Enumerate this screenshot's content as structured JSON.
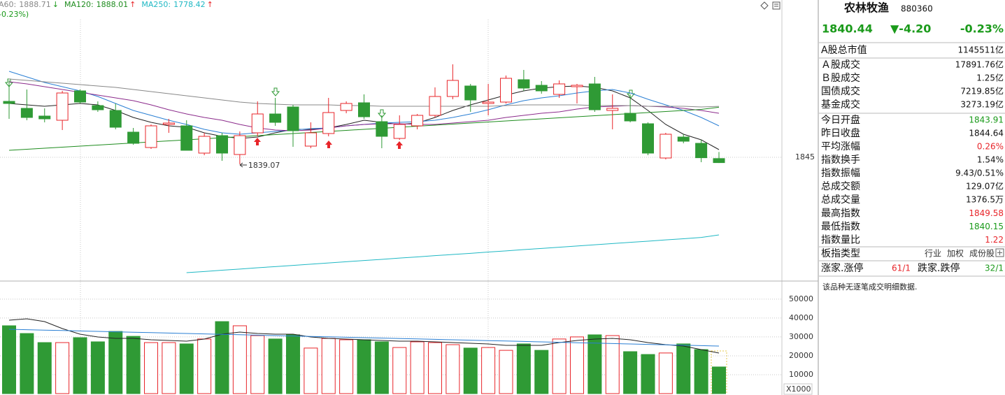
{
  "chart_data": [
    {
      "type": "candlestick",
      "open": [
        1893,
        1887,
        1880.4,
        1876.8,
        1902,
        1889.4,
        1885.2,
        1866.6,
        1853.4,
        1873.2,
        1872,
        1848.6,
        1863.6,
        1847.4,
        1866,
        1882.2,
        1888.2,
        1854.6,
        1865.4,
        1885.2,
        1891.8,
        1875.6,
        1861.2,
        1872,
        1881,
        1897.2,
        1906.2,
        1891.2,
        1892.4,
        1911.6,
        1906.8,
        1899,
        1905.6,
        1908,
        1885.2,
        1882.8,
        1873.8,
        1844.4,
        1862.4,
        1857,
        1843.91
      ],
      "high": [
        1911,
        1903.2,
        1887,
        1902,
        1903.2,
        1893,
        1891.2,
        1870.2,
        1873.2,
        1878,
        1876.8,
        1866,
        1866,
        1867.2,
        1893,
        1896,
        1890,
        1875,
        1896,
        1893,
        1899,
        1881,
        1881,
        1882.2,
        1905,
        1924.8,
        1908,
        1908,
        1915.2,
        1920,
        1910.4,
        1911,
        1908,
        1914,
        1899,
        1899,
        1875,
        1866,
        1864.8,
        1860,
        1849.58
      ],
      "low": [
        1878,
        1876.8,
        1875,
        1868.4,
        1891.2,
        1884,
        1869,
        1855.8,
        1852.2,
        1866,
        1851,
        1846.8,
        1842,
        1839.07,
        1863,
        1872,
        1854,
        1852.8,
        1863,
        1882.8,
        1878,
        1852.8,
        1860,
        1869,
        1879.2,
        1894.8,
        1884,
        1881,
        1891.2,
        1902,
        1899.6,
        1896,
        1891.2,
        1884,
        1869,
        1875,
        1846.8,
        1843.2,
        1857,
        1840.8,
        1840.15
      ],
      "close": [
        1891.2,
        1879.2,
        1878,
        1900.2,
        1892.4,
        1885.8,
        1870.8,
        1857,
        1872,
        1874.4,
        1851,
        1863,
        1848.6,
        1863.6,
        1882.2,
        1875,
        1867.8,
        1866,
        1883.4,
        1891.2,
        1879.8,
        1863,
        1873.2,
        1881,
        1897.2,
        1911,
        1894.2,
        1892.4,
        1912.8,
        1904.4,
        1902,
        1908,
        1906.8,
        1885.8,
        1887,
        1876.2,
        1848.6,
        1864.8,
        1858.8,
        1844.64,
        1840.44
      ],
      "up_color": "#e8252a",
      "down_color": "#2f9a35",
      "ylim": [
        1740,
        1980
      ],
      "yticks": [
        1845
      ],
      "grid": true,
      "low_annotation_index": 13,
      "change_fragment": "-0.23%)",
      "change_fragment_color": "#1a9a1a",
      "series": [
        {
          "color": "#222222",
          "values": [
            1891.2,
            1890,
            1888.8,
            1890,
            1891.2,
            1890,
            1885.2,
            1879.2,
            1875,
            1872,
            1870.8,
            1866,
            1863,
            1861.2,
            1862.4,
            1866,
            1869,
            1869,
            1870.2,
            1873.2,
            1876.8,
            1875,
            1873.2,
            1874.4,
            1879.2,
            1885.2,
            1890,
            1894.2,
            1898.4,
            1902,
            1904.4,
            1905.6,
            1906.2,
            1905,
            1902,
            1896,
            1885.2,
            1873.2,
            1864.8,
            1860,
            1851.6
          ]
        },
        {
          "color": "#2a7fd4",
          "values": [
            1918.8,
            1914,
            1909.2,
            1905.6,
            1902,
            1897.2,
            1891.2,
            1885.2,
            1881,
            1876.8,
            1873.2,
            1869,
            1866,
            1864.8,
            1866,
            1867.2,
            1868.4,
            1869.6,
            1870.2,
            1872,
            1873.2,
            1874.4,
            1875,
            1875.6,
            1876.8,
            1879.2,
            1882.2,
            1885.8,
            1890,
            1893.6,
            1896,
            1897.8,
            1900.2,
            1902,
            1903.2,
            1900.2,
            1894.8,
            1890,
            1885.2,
            1879.2,
            1872
          ]
        },
        {
          "color": "#8b2a8b",
          "values": [
            1909.8,
            1908,
            1905.6,
            1903.2,
            1900.8,
            1898.4,
            1896,
            1893.6,
            1890,
            1885.8,
            1882.2,
            1879.2,
            1876.8,
            1873.2,
            1870.2,
            1868.4,
            1867.8,
            1868.4,
            1870.2,
            1872,
            1873.2,
            1873.8,
            1873.8,
            1873.2,
            1873.2,
            1874.4,
            1875.6,
            1876.8,
            1879.2,
            1881,
            1882.8,
            1884,
            1886.4,
            1888.2,
            1888.8,
            1889.4,
            1888.8,
            1888.2,
            1887,
            1885.2,
            1882.8
          ]
        },
        {
          "name": "A60:",
          "color": "#888888",
          "trend": "↓",
          "trend_color": "#1a9a1a",
          "values": [
            1912.2,
            1911,
            1909.8,
            1908.6,
            1907.4,
            1906.2,
            1905,
            1903.2,
            1901.4,
            1899.6,
            1897.8,
            1896,
            1894.2,
            1892.4,
            1891.2,
            1890.6,
            1890,
            1890,
            1890,
            1889.4,
            1889.4,
            1888.8,
            1888.8,
            1888.8,
            1888.8,
            1888.8,
            1888.8,
            1888.8,
            1889.4,
            1890,
            1890,
            1890,
            1890,
            1889.4,
            1889.4,
            1889.4,
            1888.8,
            1888.8,
            1888.8,
            1888.2,
            1888.71
          ]
        },
        {
          "name": "MA120:",
          "color": "#1e8c1e",
          "trend": "↑",
          "trend_color": "#e8252a",
          "values": [
            1851,
            1851.9,
            1852.8,
            1853.7,
            1854.6,
            1855.5,
            1856.4,
            1857.3,
            1858.2,
            1859.1,
            1860,
            1860.9,
            1861.8,
            1862.7,
            1863.6,
            1864.5,
            1865.4,
            1866.3,
            1867.2,
            1868.1,
            1869,
            1869.9,
            1870.8,
            1871.7,
            1872.6,
            1873.5,
            1874.4,
            1875.3,
            1876.2,
            1877.1,
            1878,
            1878.9,
            1879.8,
            1880.7,
            1881.6,
            1882.5,
            1883.4,
            1884.3,
            1885.2,
            1886.1,
            1888.01
          ]
        },
        {
          "name": "MA250:",
          "color": "#1fb8c4",
          "trend": "↑",
          "trend_color": "#e8252a",
          "values": [
            null,
            null,
            null,
            null,
            null,
            null,
            null,
            null,
            null,
            null,
            1746,
            1747,
            1748.1,
            1749.1,
            1750.2,
            1751.2,
            1752.2,
            1753.3,
            1754.3,
            1755.4,
            1756.4,
            1757.4,
            1758.5,
            1759.5,
            1760.6,
            1761.6,
            1762.6,
            1763.7,
            1764.7,
            1765.8,
            1766.8,
            1767.8,
            1768.9,
            1769.9,
            1771,
            1772,
            1773,
            1774.1,
            1775.1,
            1776.2,
            1778.42
          ]
        }
      ]
    },
    {
      "type": "bar",
      "values": [
        35900,
        31800,
        27000,
        27000,
        29600,
        27400,
        32900,
        30300,
        27000,
        27000,
        26300,
        28900,
        38100,
        35900,
        30700,
        28900,
        31100,
        24100,
        29200,
        28500,
        28500,
        27400,
        24400,
        27400,
        27000,
        25900,
        24100,
        24400,
        22900,
        26300,
        22900,
        28900,
        30000,
        31100,
        30700,
        22200,
        20700,
        21500,
        26300,
        23300,
        14100
      ],
      "ylim": [
        0,
        59200
      ],
      "yticks": [
        10000,
        20000,
        30000,
        40000,
        50000
      ],
      "grid": true,
      "unit_label": "X1000",
      "series": [
        {
          "color": "#222222",
          "values": [
            38850,
            39590,
            38110,
            34410,
            31450,
            29970,
            29230,
            29230,
            28490,
            28120,
            27750,
            28860,
            31450,
            32560,
            31820,
            31450,
            31450,
            29970,
            29230,
            28860,
            28490,
            28120,
            27750,
            27750,
            27380,
            27010,
            26640,
            26270,
            25530,
            25530,
            25530,
            27010,
            28120,
            28860,
            29230,
            28490,
            27010,
            25900,
            25160,
            23310,
            21460
          ]
        },
        {
          "color": "#2a7fd4",
          "values": [
            34040,
            33818,
            33596,
            33374,
            33152,
            32930,
            32708,
            32486,
            32264,
            32042,
            31820,
            31598,
            31376,
            31154,
            30932,
            30710,
            30488,
            30266,
            30044,
            29822,
            29600,
            29378,
            29156,
            28934,
            28712,
            28490,
            28268,
            28046,
            27824,
            27602,
            27380,
            27158,
            26936,
            26714,
            26492,
            26270,
            26048,
            25826,
            25604,
            25382,
            25160
          ]
        }
      ]
    }
  ],
  "quote_panel": {
    "name": "农林牧渔",
    "code": "880360",
    "price": "1840.44",
    "change": "▼-4.20",
    "change_pct": "-0.23%",
    "quote_color": "#1a9a1a",
    "sections": [
      [
        {
          "label": "A股总市值",
          "value": "1145511亿",
          "color": "#111111"
        }
      ],
      [
        {
          "label": "Ａ股成交",
          "value": "17891.76亿",
          "color": "#111111"
        },
        {
          "label": "Ｂ股成交",
          "value": "1.25亿",
          "color": "#111111"
        },
        {
          "label": "国债成交",
          "value": "7219.85亿",
          "color": "#111111"
        },
        {
          "label": "基金成交",
          "value": "3273.19亿",
          "color": "#111111"
        }
      ],
      [
        {
          "label": "今日开盘",
          "value": "1843.91",
          "color": "#1a9a1a"
        },
        {
          "label": "昨日收盘",
          "value": "1844.64",
          "color": "#111111"
        },
        {
          "label": "平均涨幅",
          "value": "0.26%",
          "color": "#e8252a"
        },
        {
          "label": "指数换手",
          "value": "1.54%",
          "color": "#111111"
        },
        {
          "label": "指数振幅",
          "value": "9.43/0.51%",
          "color": "#111111"
        },
        {
          "label": "总成交额",
          "value": "129.07亿",
          "color": "#111111"
        },
        {
          "label": "总成交量",
          "value": "1376.5万",
          "color": "#111111"
        },
        {
          "label": "最高指数",
          "value": "1849.58",
          "color": "#e8252a"
        },
        {
          "label": "最低指数",
          "value": "1840.15",
          "color": "#1a9a1a"
        },
        {
          "label": "指数量比",
          "value": "1.22",
          "color": "#e8252a"
        }
      ]
    ],
    "index_type": {
      "label": "板指类型",
      "options": [
        "行业",
        "加权",
        "成份股"
      ]
    },
    "breadth": {
      "up_label": "涨家.涨停",
      "up_value": "61/1",
      "up_color": "#e8252a",
      "down_label": "跌家.跌停",
      "down_value": "32/1",
      "down_color": "#1a9a1a"
    },
    "note": "该品种无逐笔成交明细数据."
  }
}
